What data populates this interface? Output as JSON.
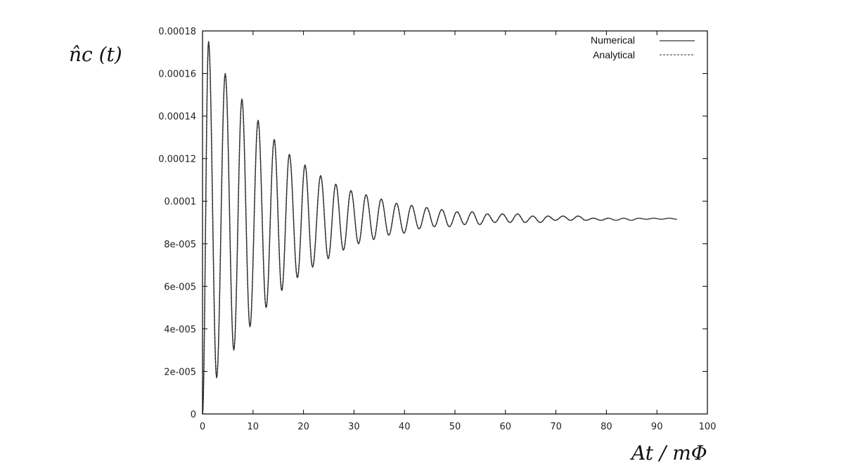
{
  "chart_data": {
    "type": "line",
    "ylabel": "n̂c (t)",
    "xlabel": "At / mΦ",
    "xlim": [
      0,
      100
    ],
    "ylim": [
      0,
      0.00018
    ],
    "x_ticks": [
      "0",
      "10",
      "20",
      "30",
      "40",
      "50",
      "60",
      "70",
      "80",
      "90",
      "100"
    ],
    "y_ticks": [
      "0",
      "2e-005",
      "4e-005",
      "6e-005",
      "8e-005",
      "0.0001",
      "0.00012",
      "0.00014",
      "0.00016",
      "0.00018"
    ],
    "grid": false,
    "legend_position": "top-right",
    "series": [
      {
        "name": "Numerical",
        "style": "solid",
        "x": [
          0,
          1.2,
          2.8,
          4.5,
          6.2,
          7.8,
          9.4,
          11.0,
          12.6,
          14.2,
          15.7,
          17.2,
          18.8,
          20.3,
          21.8,
          23.4,
          24.9,
          26.4,
          27.9,
          29.4,
          30.9,
          32.4,
          33.9,
          35.4,
          36.9,
          38.4,
          39.9,
          41.4,
          42.9,
          44.4,
          45.9,
          47.4,
          48.9,
          50.4,
          51.9,
          53.4,
          54.9,
          56.4,
          57.9,
          59.4,
          60.9,
          62.4,
          63.9,
          65.4,
          66.9,
          68.4,
          69.9,
          71.4,
          72.9,
          74.4,
          75.9,
          77.4,
          78.9,
          80.4,
          81.9,
          83.4,
          84.9,
          86.4,
          87.9,
          89.4,
          90.9,
          92.4,
          94.0
        ],
        "y": [
          0,
          0.000175,
          1.7e-05,
          0.00016,
          3e-05,
          0.000148,
          4.1e-05,
          0.000138,
          5e-05,
          0.000129,
          5.8e-05,
          0.000122,
          6.4e-05,
          0.000117,
          6.9e-05,
          0.000112,
          7.3e-05,
          0.000108,
          7.7e-05,
          0.000105,
          8e-05,
          0.000103,
          8.2e-05,
          0.000101,
          8.4e-05,
          9.9e-05,
          8.5e-05,
          9.8e-05,
          8.7e-05,
          9.7e-05,
          8.8e-05,
          9.6e-05,
          8.8e-05,
          9.5e-05,
          8.9e-05,
          9.5e-05,
          8.9e-05,
          9.4e-05,
          9e-05,
          9.4e-05,
          9e-05,
          9.4e-05,
          9e-05,
          9.3e-05,
          9e-05,
          9.3e-05,
          9.1e-05,
          9.3e-05,
          9.1e-05,
          9.3e-05,
          9.1e-05,
          9.2e-05,
          9.1e-05,
          9.2e-05,
          9.1e-05,
          9.2e-05,
          9.1e-05,
          9.2e-05,
          9.15e-05,
          9.2e-05,
          9.15e-05,
          9.2e-05,
          9.15e-05
        ]
      },
      {
        "name": "Analytical",
        "style": "dashed",
        "x": [
          0,
          1.2,
          2.8,
          4.5,
          6.2,
          7.8,
          9.4,
          11.0,
          12.6,
          14.2,
          15.7,
          17.2,
          18.8,
          20.3,
          21.8,
          23.4,
          24.9,
          26.4,
          27.9,
          29.4,
          30.9,
          32.4,
          33.9,
          35.4,
          36.9,
          38.4,
          39.9,
          41.4,
          42.9,
          44.4,
          45.9,
          47.4,
          48.9,
          50.4,
          51.9,
          53.4,
          54.9,
          56.4,
          57.9,
          59.4,
          60.9,
          62.4,
          63.9,
          65.4,
          66.9,
          68.4,
          69.9,
          71.4,
          72.9,
          74.4,
          75.9,
          77.4,
          78.9,
          80.4
        ],
        "y": [
          0,
          0.000175,
          1.7e-05,
          0.00016,
          3e-05,
          0.000148,
          4.1e-05,
          0.000138,
          5e-05,
          0.000129,
          5.8e-05,
          0.000122,
          6.4e-05,
          0.000117,
          6.9e-05,
          0.000112,
          7.3e-05,
          0.000108,
          7.7e-05,
          0.000105,
          8e-05,
          0.000103,
          8.2e-05,
          0.000101,
          8.4e-05,
          9.9e-05,
          8.5e-05,
          9.8e-05,
          8.7e-05,
          9.7e-05,
          8.8e-05,
          9.6e-05,
          8.8e-05,
          9.5e-05,
          8.9e-05,
          9.5e-05,
          8.9e-05,
          9.4e-05,
          9e-05,
          9.4e-05,
          9e-05,
          9.4e-05,
          9e-05,
          9.3e-05,
          9e-05,
          9.3e-05,
          9.1e-05,
          9.3e-05,
          9.1e-05,
          9.3e-05,
          9.1e-05,
          9.2e-05,
          9.1e-05,
          9.2e-05
        ]
      }
    ]
  }
}
